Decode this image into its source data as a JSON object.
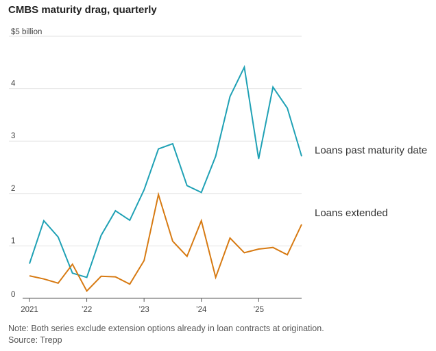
{
  "title": "CMBS maturity drag, quarterly",
  "note": "Note: Both series exclude extension options already in loan contracts at origination.",
  "source": "Source: Trepp",
  "colors": {
    "past_maturity": "#1fa1b5",
    "extended": "#d77a12",
    "grid": "#e2e2e2",
    "axis": "#555555"
  },
  "chart_data": {
    "type": "line",
    "title": "CMBS maturity drag, quarterly",
    "xlabel": "",
    "ylabel": "",
    "ylim": [
      0,
      5
    ],
    "y_ticks": [
      {
        "value": 0,
        "label": "0"
      },
      {
        "value": 1,
        "label": "1"
      },
      {
        "value": 2,
        "label": "2"
      },
      {
        "value": 3,
        "label": "3"
      },
      {
        "value": 4,
        "label": "4"
      },
      {
        "value": 5,
        "label": "$5 billion"
      }
    ],
    "x_ticks": [
      {
        "index": 0,
        "label": "2021"
      },
      {
        "index": 4,
        "label": "’22"
      },
      {
        "index": 8,
        "label": "’23"
      },
      {
        "index": 12,
        "label": "’24"
      },
      {
        "index": 16,
        "label": "’25"
      }
    ],
    "x": [
      "2021 Q1",
      "2021 Q2",
      "2021 Q3",
      "2021 Q4",
      "2022 Q1",
      "2022 Q2",
      "2022 Q3",
      "2022 Q4",
      "2023 Q1",
      "2023 Q2",
      "2023 Q3",
      "2023 Q4",
      "2024 Q1",
      "2024 Q2",
      "2024 Q3",
      "2024 Q4",
      "2025 Q1",
      "2025 Q2",
      "2025 Q3",
      "2025 Q4"
    ],
    "series": [
      {
        "name": "Loans past maturity date",
        "color_key": "past_maturity",
        "values": [
          0.66,
          1.48,
          1.17,
          0.48,
          0.4,
          1.2,
          1.67,
          1.49,
          2.07,
          2.85,
          2.95,
          2.15,
          2.02,
          2.71,
          3.85,
          4.41,
          2.66,
          4.03,
          3.63,
          2.71
        ]
      },
      {
        "name": "Loans extended",
        "color_key": "extended",
        "values": [
          0.43,
          0.37,
          0.29,
          0.65,
          0.14,
          0.42,
          0.41,
          0.27,
          0.72,
          1.98,
          1.09,
          0.8,
          1.48,
          0.4,
          1.15,
          0.87,
          0.94,
          0.97,
          0.83,
          1.41
        ]
      }
    ]
  }
}
